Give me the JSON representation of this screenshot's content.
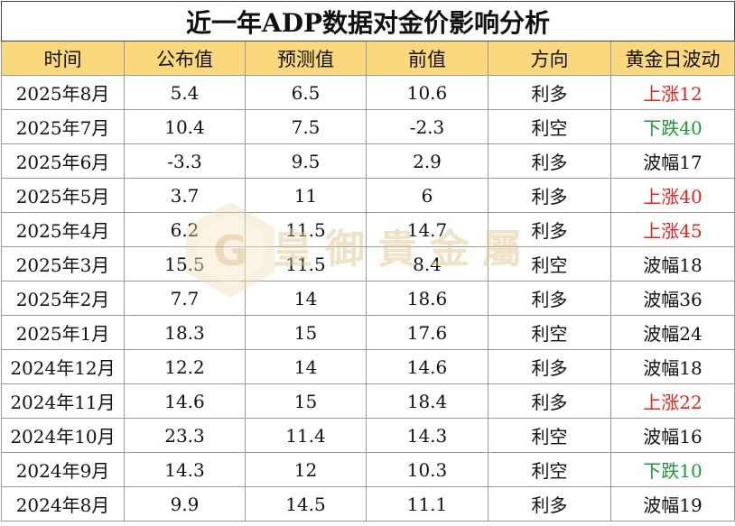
{
  "title": "近一年ADP数据对金价影响分析",
  "watermark": {
    "text": "皇御貴金屬",
    "letter": "G"
  },
  "headers": [
    "时间",
    "公布值",
    "预测值",
    "前值",
    "方向",
    "黄金日波动"
  ],
  "rows": [
    {
      "date": "2025年8月",
      "actual": "5.4",
      "forecast": "6.5",
      "previous": "10.6",
      "direction": "利多",
      "move": "上涨12",
      "trend": "up"
    },
    {
      "date": "2025年7月",
      "actual": "10.4",
      "forecast": "7.5",
      "previous": "-2.3",
      "direction": "利空",
      "move": "下跌40",
      "trend": "down"
    },
    {
      "date": "2025年6月",
      "actual": "-3.3",
      "forecast": "9.5",
      "previous": "2.9",
      "direction": "利多",
      "move": "波幅17",
      "trend": "flat"
    },
    {
      "date": "2025年5月",
      "actual": "3.7",
      "forecast": "11",
      "previous": "6",
      "direction": "利多",
      "move": "上涨40",
      "trend": "up"
    },
    {
      "date": "2025年4月",
      "actual": "6.2",
      "forecast": "11.5",
      "previous": "14.7",
      "direction": "利多",
      "move": "上涨45",
      "trend": "up"
    },
    {
      "date": "2025年3月",
      "actual": "15.5",
      "forecast": "11.5",
      "previous": "8.4",
      "direction": "利空",
      "move": "波幅18",
      "trend": "flat"
    },
    {
      "date": "2025年2月",
      "actual": "7.7",
      "forecast": "14",
      "previous": "18.6",
      "direction": "利多",
      "move": "波幅36",
      "trend": "flat"
    },
    {
      "date": "2025年1月",
      "actual": "18.3",
      "forecast": "15",
      "previous": "17.6",
      "direction": "利空",
      "move": "波幅24",
      "trend": "flat"
    },
    {
      "date": "2024年12月",
      "actual": "12.2",
      "forecast": "14",
      "previous": "14.6",
      "direction": "利多",
      "move": "波幅18",
      "trend": "flat"
    },
    {
      "date": "2024年11月",
      "actual": "14.6",
      "forecast": "15",
      "previous": "18.4",
      "direction": "利多",
      "move": "上涨22",
      "trend": "up"
    },
    {
      "date": "2024年10月",
      "actual": "23.3",
      "forecast": "11.4",
      "previous": "14.3",
      "direction": "利空",
      "move": "波幅16",
      "trend": "flat"
    },
    {
      "date": "2024年9月",
      "actual": "14.3",
      "forecast": "12",
      "previous": "10.3",
      "direction": "利空",
      "move": "下跌10",
      "trend": "down"
    },
    {
      "date": "2024年8月",
      "actual": "9.9",
      "forecast": "14.5",
      "previous": "11.1",
      "direction": "利多",
      "move": "波幅19",
      "trend": "flat"
    }
  ],
  "colors": {
    "header_bg": "#fbd77e",
    "up": "#e3241b",
    "down": "#1c9a34",
    "watermark": "#e2c68f"
  }
}
